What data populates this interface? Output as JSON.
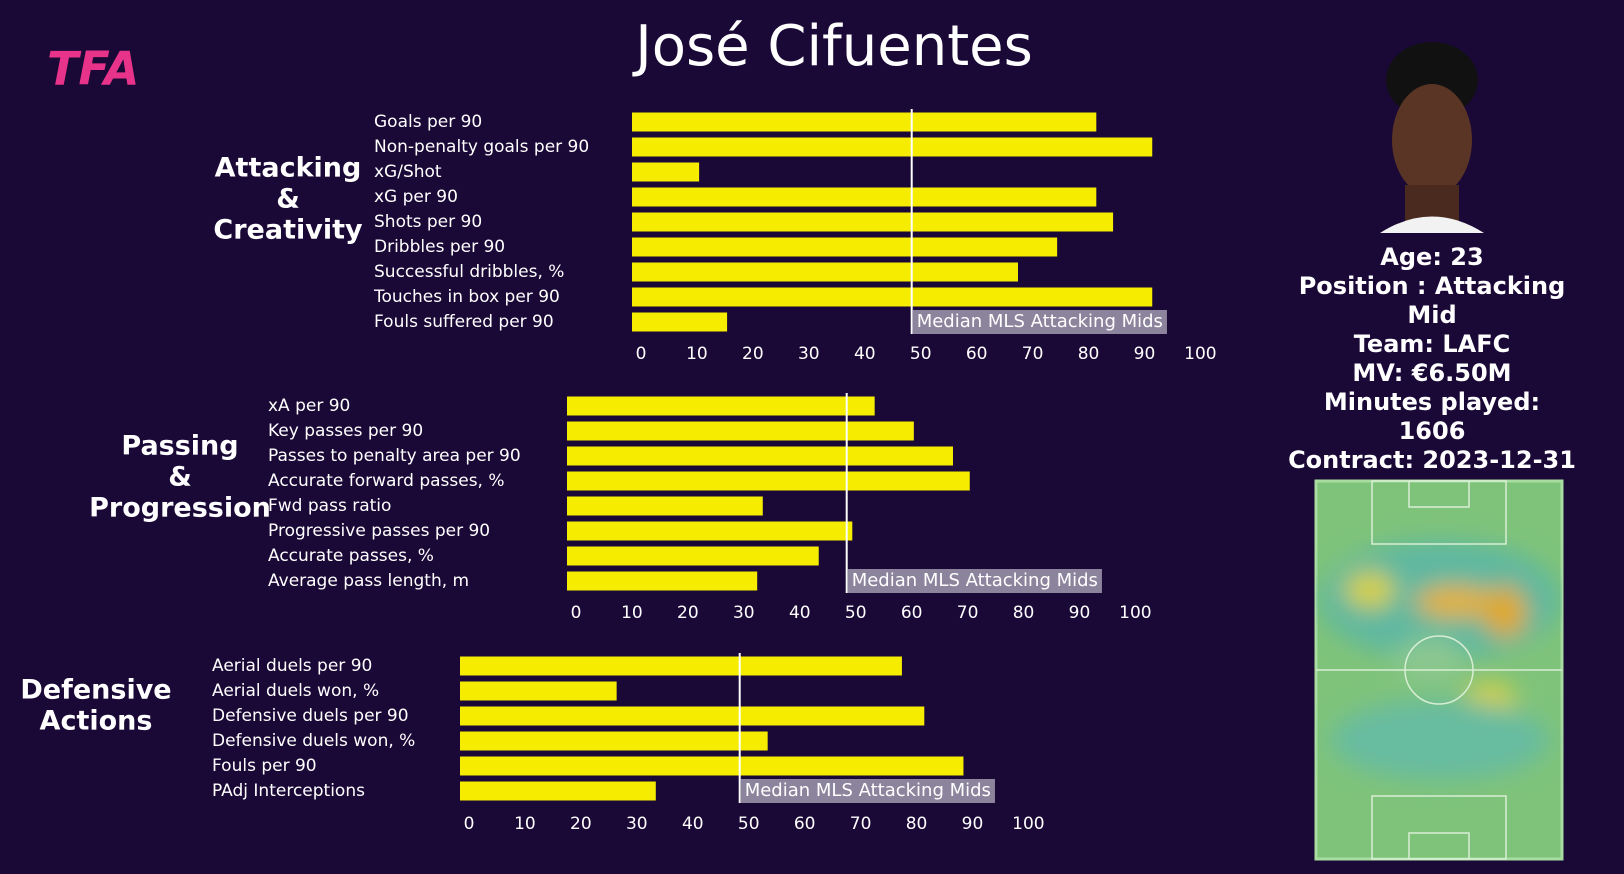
{
  "header": {
    "logo": "TFA",
    "title": "José Cifuentes"
  },
  "chart_data": [
    {
      "type": "bar",
      "orientation": "horizontal",
      "group_label": [
        "Attacking",
        "&",
        "Creativity"
      ],
      "color": "#f5ec00",
      "categories": [
        "Goals per 90",
        "Non-penalty goals per 90",
        "xG/Shot",
        "xG per 90",
        "Shots per 90",
        "Dribbles per 90",
        "Successful dribbles, %",
        "Touches in box per 90",
        "Fouls suffered per 90"
      ],
      "values": [
        83,
        93,
        12,
        83,
        86,
        76,
        69,
        93,
        17
      ],
      "xlim": [
        0,
        100
      ],
      "xticks": [
        0,
        10,
        20,
        30,
        40,
        50,
        60,
        70,
        80,
        90,
        100
      ],
      "median": 50,
      "median_label": "Median MLS Attacking Mids"
    },
    {
      "type": "bar",
      "orientation": "horizontal",
      "group_label": [
        "Passing",
        "&",
        "Progression"
      ],
      "color": "#f5ec00",
      "categories": [
        "xA per 90",
        "Key passes per 90",
        "Passes to penalty area per 90",
        "Accurate forward passes, %",
        "Fwd pass ratio",
        "Progressive passes per 90",
        "Accurate passes, %",
        "Average pass length, m"
      ],
      "values": [
        55,
        62,
        69,
        72,
        35,
        51,
        45,
        34
      ],
      "xlim": [
        0,
        100
      ],
      "xticks": [
        0,
        10,
        20,
        30,
        40,
        50,
        60,
        70,
        80,
        90,
        100
      ],
      "median": 50,
      "median_label": "Median MLS Attacking Mids"
    },
    {
      "type": "bar",
      "orientation": "horizontal",
      "group_label": [
        "Defensive",
        "Actions"
      ],
      "color": "#f5ec00",
      "categories": [
        "Aerial duels per 90",
        "Aerial duels won, %",
        "Defensive duels per 90",
        "Defensive duels won, %",
        "Fouls per 90",
        "PAdj Interceptions"
      ],
      "values": [
        79,
        28,
        83,
        55,
        90,
        35
      ],
      "xlim": [
        0,
        100
      ],
      "xticks": [
        0,
        10,
        20,
        30,
        40,
        50,
        60,
        70,
        80,
        90,
        100
      ],
      "median": 50,
      "median_label": "Median MLS Attacking Mids"
    }
  ],
  "profile": {
    "lines": [
      "Age: 23",
      "Position : Attacking Mid",
      "Team: LAFC",
      "MV: €6.50M",
      "Minutes played: 1606",
      "Contract: 2023-12-31"
    ]
  }
}
